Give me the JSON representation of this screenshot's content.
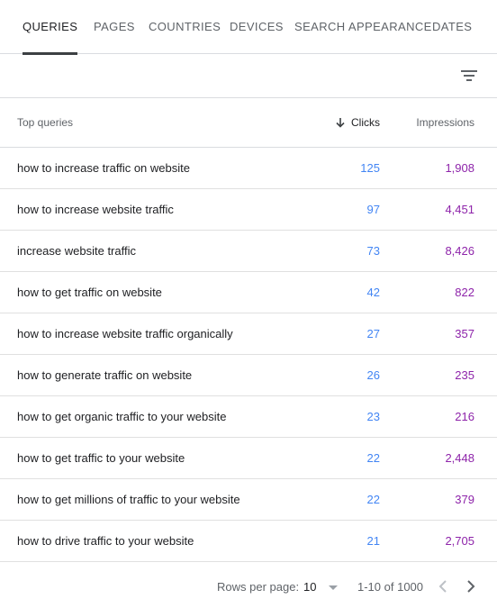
{
  "tabs": [
    {
      "label": "QUERIES",
      "active": true
    },
    {
      "label": "PAGES",
      "active": false
    },
    {
      "label": "COUNTRIES",
      "active": false
    },
    {
      "label": "DEVICES",
      "active": false
    },
    {
      "label": "SEARCH APPEARANCE",
      "active": false
    },
    {
      "label": "DATES",
      "active": false
    }
  ],
  "filter": {
    "icon": "filter-icon"
  },
  "table": {
    "headers": {
      "query": "Top queries",
      "clicks": "Clicks",
      "impressions": "Impressions",
      "sort_icon": "arrow-down-icon"
    },
    "rows": [
      {
        "query": "how to increase traffic on website",
        "clicks": "125",
        "impressions": "1,908"
      },
      {
        "query": "how to increase website traffic",
        "clicks": "97",
        "impressions": "4,451"
      },
      {
        "query": "increase website traffic",
        "clicks": "73",
        "impressions": "8,426"
      },
      {
        "query": "how to get traffic on website",
        "clicks": "42",
        "impressions": "822"
      },
      {
        "query": "how to increase website traffic organically",
        "clicks": "27",
        "impressions": "357"
      },
      {
        "query": "how to generate traffic on website",
        "clicks": "26",
        "impressions": "235"
      },
      {
        "query": "how to get organic traffic to your website",
        "clicks": "23",
        "impressions": "216"
      },
      {
        "query": "how to get traffic to your website",
        "clicks": "22",
        "impressions": "2,448"
      },
      {
        "query": "how to get millions of traffic to your website",
        "clicks": "22",
        "impressions": "379"
      },
      {
        "query": "how to drive traffic to your website",
        "clicks": "21",
        "impressions": "2,705"
      }
    ]
  },
  "pagination": {
    "rows_per_page_label": "Rows per page:",
    "rows_per_page_value": "10",
    "range": "1-10 of 1000",
    "prev_icon": "chevron-left-icon",
    "next_icon": "chevron-right-icon"
  },
  "colors": {
    "clicks": "#4285f4",
    "impressions": "#8e24aa",
    "active_tab": "#3c4043"
  }
}
